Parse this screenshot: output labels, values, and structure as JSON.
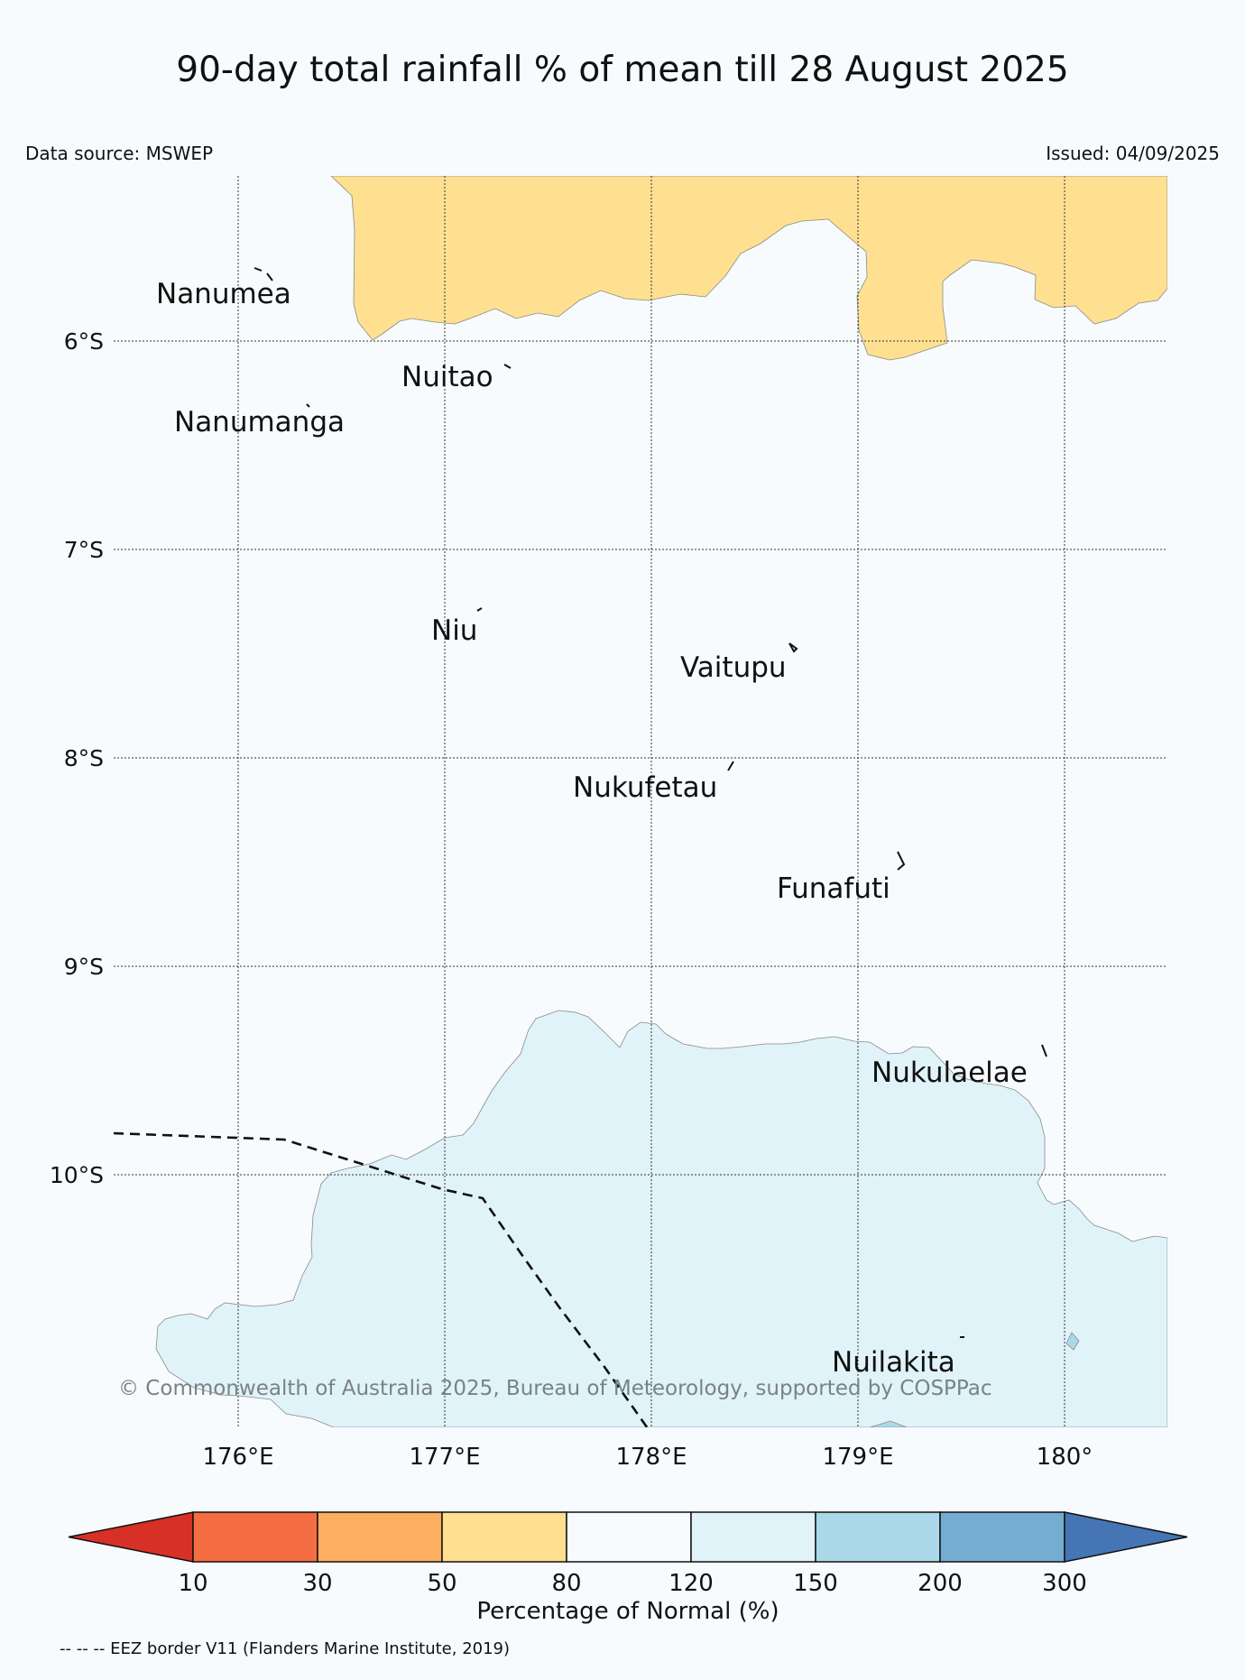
{
  "title": "90-day total rainfall % of mean till 28 August 2025",
  "data_source": "Data source: MSWEP",
  "issued": "Issued: 04/09/2025",
  "copyright": "© Commonwealth of Australia 2025, Bureau of Meteorology, supported by COSPPac",
  "lat_labels": [
    "6°S",
    "7°S",
    "8°S",
    "9°S",
    "10°S"
  ],
  "lon_labels": [
    "176°E",
    "177°E",
    "178°E",
    "179°E",
    "180°"
  ],
  "islands": [
    "Nanumea",
    "Nuitao",
    "Nanumanga",
    "Niu",
    "Vaitupu",
    "Nukufetau",
    "Funafuti",
    "Nukulaelae",
    "Nuilakita"
  ],
  "colorbar": {
    "label": "Percentage of Normal (%)",
    "ticks": [
      "10",
      "30",
      "50",
      "80",
      "120",
      "150",
      "200",
      "300"
    ],
    "colors": [
      "#d73027",
      "#f46d43",
      "#fdae61",
      "#fee090",
      "#f7fbfd",
      "#e0f3f8",
      "#abd9e9",
      "#74add1",
      "#4575b4"
    ]
  },
  "legend_note": "-- -- -- EEZ border V11 (Flanders Marine Institute, 2019)"
}
